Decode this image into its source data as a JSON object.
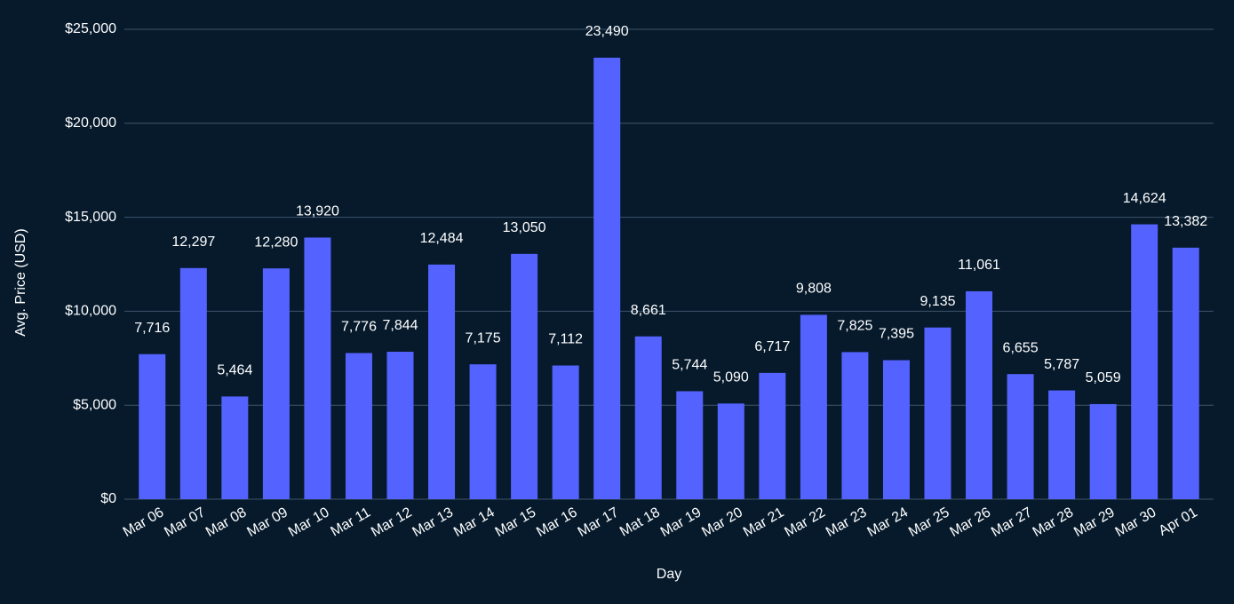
{
  "chart_data": {
    "type": "bar",
    "x_label": "Day",
    "y_label": "Avg. Price (USD)",
    "categories": [
      "Mar 06",
      "Mar 07",
      "Mar 08",
      "Mar 09",
      "Mar 10",
      "Mar 11",
      "Mar 12",
      "Mar 13",
      "Mar 14",
      "Mar 15",
      "Mar 16",
      "Mar 17",
      "Mat 18",
      "Mar 19",
      "Mar 20",
      "Mar 21",
      "Mar 22",
      "Mar 23",
      "Mar 24",
      "Mar 25",
      "Mar 26",
      "Mar 27",
      "Mar 28",
      "Mar 29",
      "Mar 30",
      "Apr 01"
    ],
    "values": [
      7716,
      12297,
      5464,
      12280,
      13920,
      7776,
      7844,
      12484,
      7175,
      13050,
      7112,
      23490,
      8661,
      5744,
      5090,
      6717,
      9808,
      7825,
      7395,
      9135,
      11061,
      6655,
      5787,
      5059,
      14624,
      13382
    ],
    "value_labels": [
      "7,716",
      "12,297",
      "5,464",
      "12,280",
      "13,920",
      "7,776",
      "7,844",
      "12,484",
      "7,175",
      "13,050",
      "7,112",
      "23,490",
      "8,661",
      "5,744",
      "5,090",
      "6,717",
      "9,808",
      "7,825",
      "7,395",
      "9,135",
      "11,061",
      "6,655",
      "5,787",
      "5,059",
      "14,624",
      "13,382"
    ],
    "color": "#5463ff",
    "ylim": [
      0,
      25000
    ],
    "yticks": [
      {
        "value": 0,
        "label": "$0"
      },
      {
        "value": 5000,
        "label": "$5,000"
      },
      {
        "value": 10000,
        "label": "$10,000"
      },
      {
        "value": 15000,
        "label": "$15,000"
      },
      {
        "value": 20000,
        "label": "$20,000"
      },
      {
        "value": 25000,
        "label": "$25,000"
      }
    ],
    "grid": true
  }
}
